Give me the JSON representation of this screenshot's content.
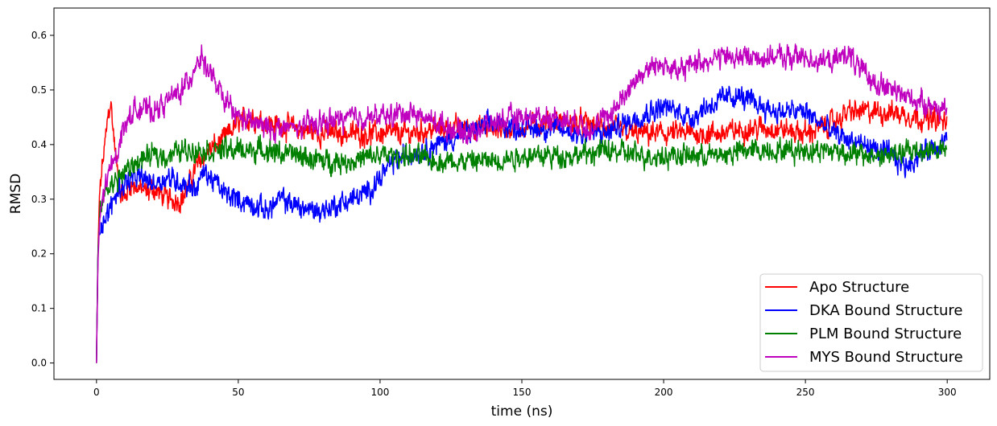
{
  "chart_data": {
    "type": "line",
    "title": "",
    "xlabel": "time (ns)",
    "ylabel": "RMSD",
    "xlim": [
      -15,
      315
    ],
    "ylim": [
      -0.03,
      0.65
    ],
    "xticks": [
      0,
      50,
      100,
      150,
      200,
      250,
      300
    ],
    "yticks": [
      0.0,
      0.1,
      0.2,
      0.3,
      0.4,
      0.5,
      0.6
    ],
    "xtick_labels": [
      "0",
      "50",
      "100",
      "150",
      "200",
      "250",
      "300"
    ],
    "ytick_labels": [
      "0.0",
      "0.1",
      "0.2",
      "0.3",
      "0.4",
      "0.5",
      "0.6"
    ],
    "grid": false,
    "legend_position": "lower-right",
    "series": [
      {
        "name": "Apo Structure",
        "color": "#ff0000",
        "x": [
          0,
          0.5,
          1,
          2,
          3,
          4,
          5,
          6,
          8,
          10,
          12,
          15,
          18,
          20,
          25,
          30,
          33,
          35,
          38,
          40,
          45,
          50,
          55,
          60,
          70,
          80,
          90,
          100,
          110,
          120,
          130,
          140,
          150,
          160,
          170,
          180,
          190,
          200,
          210,
          220,
          230,
          240,
          250,
          260,
          265,
          270,
          280,
          290,
          300
        ],
        "y": [
          0.0,
          0.2,
          0.3,
          0.36,
          0.4,
          0.45,
          0.48,
          0.42,
          0.32,
          0.3,
          0.33,
          0.32,
          0.31,
          0.32,
          0.3,
          0.3,
          0.33,
          0.36,
          0.38,
          0.39,
          0.41,
          0.44,
          0.45,
          0.44,
          0.43,
          0.42,
          0.42,
          0.42,
          0.42,
          0.43,
          0.43,
          0.43,
          0.43,
          0.44,
          0.44,
          0.43,
          0.42,
          0.42,
          0.42,
          0.42,
          0.43,
          0.43,
          0.42,
          0.44,
          0.46,
          0.46,
          0.46,
          0.45,
          0.44
        ]
      },
      {
        "name": "DKA Bound Structure",
        "color": "#0000ff",
        "x": [
          0,
          0.5,
          1,
          2,
          4,
          6,
          8,
          10,
          15,
          20,
          25,
          30,
          35,
          38,
          42,
          45,
          50,
          55,
          60,
          65,
          70,
          75,
          80,
          85,
          90,
          95,
          100,
          105,
          110,
          115,
          120,
          130,
          140,
          150,
          160,
          170,
          180,
          190,
          200,
          205,
          210,
          215,
          220,
          225,
          230,
          240,
          250,
          260,
          270,
          280,
          285,
          290,
          300
        ],
        "y": [
          0.0,
          0.2,
          0.25,
          0.26,
          0.27,
          0.3,
          0.32,
          0.33,
          0.34,
          0.33,
          0.34,
          0.33,
          0.32,
          0.35,
          0.33,
          0.31,
          0.3,
          0.29,
          0.28,
          0.3,
          0.29,
          0.28,
          0.28,
          0.29,
          0.3,
          0.31,
          0.34,
          0.37,
          0.38,
          0.39,
          0.4,
          0.42,
          0.44,
          0.43,
          0.43,
          0.42,
          0.42,
          0.45,
          0.47,
          0.46,
          0.45,
          0.47,
          0.48,
          0.49,
          0.48,
          0.46,
          0.46,
          0.42,
          0.4,
          0.38,
          0.36,
          0.38,
          0.41
        ]
      },
      {
        "name": "PLM Bound Structure",
        "color": "#008000",
        "x": [
          0,
          0.5,
          1,
          2,
          4,
          6,
          8,
          10,
          15,
          20,
          25,
          30,
          40,
          50,
          60,
          70,
          80,
          90,
          100,
          110,
          120,
          130,
          140,
          150,
          160,
          170,
          180,
          190,
          200,
          210,
          220,
          230,
          240,
          250,
          260,
          270,
          280,
          290,
          300
        ],
        "y": [
          0.0,
          0.2,
          0.25,
          0.3,
          0.32,
          0.33,
          0.34,
          0.35,
          0.37,
          0.38,
          0.38,
          0.39,
          0.39,
          0.39,
          0.39,
          0.38,
          0.37,
          0.37,
          0.38,
          0.38,
          0.37,
          0.37,
          0.37,
          0.38,
          0.38,
          0.38,
          0.39,
          0.38,
          0.38,
          0.38,
          0.38,
          0.39,
          0.39,
          0.39,
          0.39,
          0.38,
          0.38,
          0.39,
          0.39
        ]
      },
      {
        "name": "MYS Bound Structure",
        "color": "#bf00bf",
        "x": [
          0,
          0.5,
          1,
          2,
          4,
          6,
          8,
          10,
          15,
          20,
          25,
          30,
          33,
          35,
          37,
          40,
          45,
          50,
          55,
          60,
          70,
          80,
          90,
          100,
          110,
          120,
          130,
          140,
          150,
          160,
          170,
          175,
          180,
          185,
          190,
          195,
          200,
          205,
          210,
          220,
          230,
          240,
          250,
          260,
          265,
          270,
          280,
          290,
          300
        ],
        "y": [
          0.0,
          0.18,
          0.25,
          0.3,
          0.34,
          0.37,
          0.4,
          0.44,
          0.47,
          0.46,
          0.48,
          0.5,
          0.52,
          0.55,
          0.56,
          0.53,
          0.48,
          0.45,
          0.44,
          0.43,
          0.43,
          0.44,
          0.45,
          0.45,
          0.46,
          0.44,
          0.42,
          0.44,
          0.45,
          0.45,
          0.44,
          0.43,
          0.45,
          0.48,
          0.52,
          0.54,
          0.55,
          0.53,
          0.55,
          0.56,
          0.56,
          0.56,
          0.56,
          0.55,
          0.57,
          0.53,
          0.5,
          0.48,
          0.46
        ]
      }
    ]
  }
}
